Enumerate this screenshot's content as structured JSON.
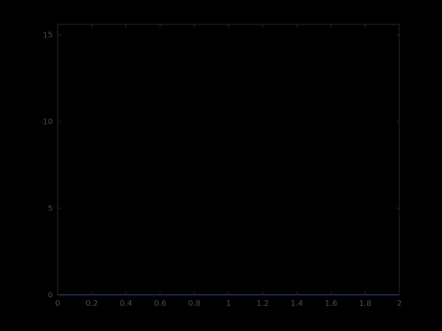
{
  "chart_data": {
    "type": "line",
    "title": "",
    "xlabel": "",
    "ylabel": "",
    "xlim": [
      0,
      2
    ],
    "ylim": [
      0,
      15.6
    ],
    "x_ticks": [
      0,
      0.2,
      0.4,
      0.6,
      0.8,
      1,
      1.2,
      1.4,
      1.6,
      1.8,
      2
    ],
    "x_tick_labels": [
      "0",
      "0.2",
      "0.4",
      "0.6",
      "0.8",
      "1",
      "1.2",
      "1.4",
      "1.6",
      "1.8",
      "2"
    ],
    "y_ticks": [
      0,
      5,
      10,
      15
    ],
    "y_tick_labels": [
      "0",
      "5",
      "10",
      "15"
    ],
    "grid": false,
    "legend": "none",
    "series": [
      {
        "color": "#1f5aa6",
        "x": [
          0,
          0.2,
          0.4,
          0.6,
          0.8,
          1,
          1.2,
          1.4,
          1.6,
          1.8,
          2
        ],
        "y": [
          0,
          0,
          0,
          0,
          0,
          0,
          0,
          0,
          0,
          0,
          0
        ]
      }
    ],
    "colors": {
      "background": "#000000",
      "axes": "#262626",
      "tick_text": "#4d4d4d"
    }
  }
}
